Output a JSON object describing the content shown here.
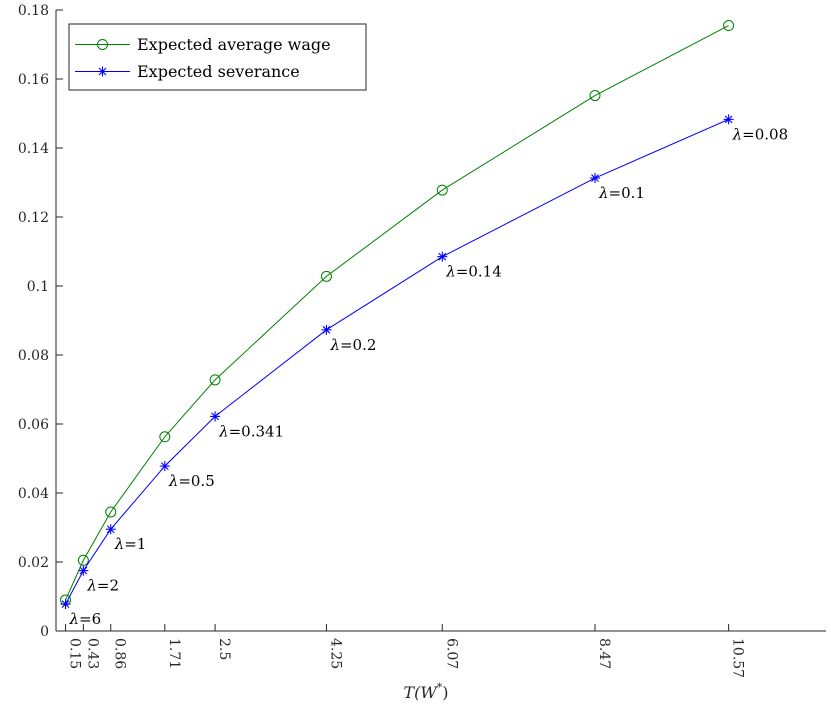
{
  "chart_data": {
    "type": "line",
    "xlabel": "T(W*)",
    "ylabel": "",
    "title": "",
    "xlim": [
      0,
      12.1
    ],
    "ylim": [
      0,
      0.18
    ],
    "x_ticks": [
      0.15,
      0.43,
      0.86,
      1.71,
      2.5,
      4.25,
      6.07,
      8.47,
      10.57
    ],
    "x_tick_labels": [
      "0.15",
      "0.43",
      "0.86",
      "1.71",
      "2.5",
      "4.25",
      "6.07",
      "8.47",
      "10.57"
    ],
    "y_ticks": [
      0,
      0.02,
      0.04,
      0.06,
      0.08,
      0.1,
      0.12,
      0.14,
      0.16,
      0.18
    ],
    "y_tick_labels": [
      "0",
      "0.02",
      "0.04",
      "0.06",
      "0.08",
      "0.1",
      "0.12",
      "0.14",
      "0.16",
      "0.18"
    ],
    "legend_position": "top-left",
    "series": [
      {
        "name": "Expected average wage",
        "color": "#008000",
        "marker": "circle",
        "x": [
          0.15,
          0.43,
          0.86,
          1.71,
          2.5,
          4.25,
          6.07,
          8.47,
          10.57
        ],
        "y": [
          0.009,
          0.0205,
          0.0345,
          0.0563,
          0.0728,
          0.1028,
          0.1278,
          0.1552,
          0.1755
        ]
      },
      {
        "name": "Expected severance",
        "color": "#0000ff",
        "marker": "asterisk",
        "x": [
          0.15,
          0.43,
          0.86,
          1.71,
          2.5,
          4.25,
          6.07,
          8.47,
          10.57
        ],
        "y": [
          0.0078,
          0.0175,
          0.0295,
          0.0478,
          0.0622,
          0.0873,
          0.1085,
          0.1313,
          0.1483
        ],
        "point_labels": [
          "λ=6",
          "λ=2",
          "λ=1",
          "λ=0.5",
          "λ=0.341",
          "λ=0.2",
          "λ=0.14",
          "λ=0.1",
          "λ=0.08"
        ]
      }
    ]
  }
}
